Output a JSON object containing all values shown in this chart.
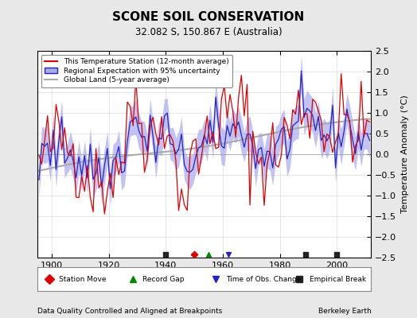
{
  "title": "SCONE SOIL CONSERVATION",
  "subtitle": "32.082 S, 150.867 E (Australia)",
  "ylabel": "Temperature Anomaly (°C)",
  "xlabel_note": "Data Quality Controlled and Aligned at Breakpoints",
  "credit": "Berkeley Earth",
  "ylim": [
    -2.5,
    2.5
  ],
  "xlim": [
    1895,
    2012
  ],
  "yticks": [
    -2.5,
    -2,
    -1.5,
    -1,
    -0.5,
    0,
    0.5,
    1,
    1.5,
    2,
    2.5
  ],
  "xticks": [
    1900,
    1920,
    1940,
    1960,
    1980,
    2000
  ],
  "bg_color": "#e8e8e8",
  "plot_bg_color": "#ffffff",
  "red_color": "#dd0000",
  "blue_color": "#2222cc",
  "blue_fill_color": "#aaaaee",
  "gray_color": "#aaaaaa",
  "legend_items": [
    "This Temperature Station (12-month average)",
    "Regional Expectation with 95% uncertainty",
    "Global Land (5-year average)"
  ],
  "marker_events": {
    "station_move": [
      1950.0
    ],
    "record_gap": [
      1955.0
    ],
    "time_obs_change": [
      1962.0
    ],
    "empirical_break": [
      1940.0,
      1989.0,
      2000.0
    ]
  }
}
